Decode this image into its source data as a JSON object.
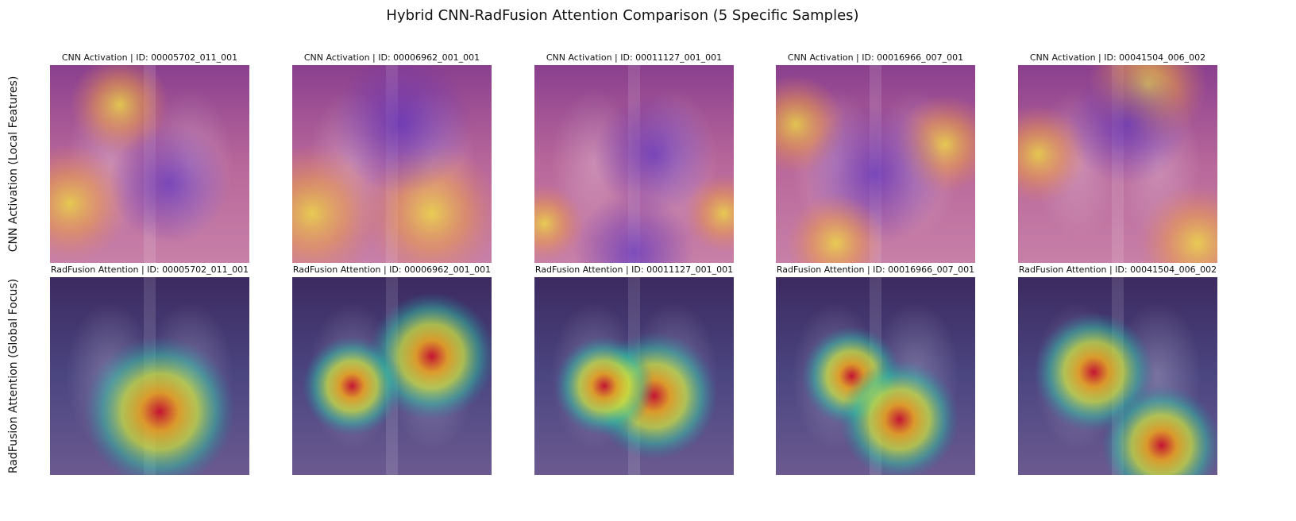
{
  "title": "Hybrid CNN-RadFusion Attention Comparison (5 Specific Samples)",
  "rows": [
    {
      "label": "CNN Activation (Local Features)",
      "panels": [
        "CNN Activation | ID: 00005702_011_001",
        "CNN Activation | ID: 00006962_001_001",
        "CNN Activation | ID: 00011127_001_001",
        "CNN Activation | ID: 00016966_007_001",
        "CNN Activation | ID: 00041504_006_002"
      ]
    },
    {
      "label": "RadFusion Attention (Global Focus)",
      "panels": [
        "RadFusion Attention | ID: 00005702_011_001",
        "RadFusion Attention | ID: 00006962_001_001",
        "RadFusion Attention | ID: 00011127_001_001",
        "RadFusion Attention | ID: 00016966_007_001",
        "RadFusion Attention | ID: 00041504_006_002"
      ]
    }
  ]
}
